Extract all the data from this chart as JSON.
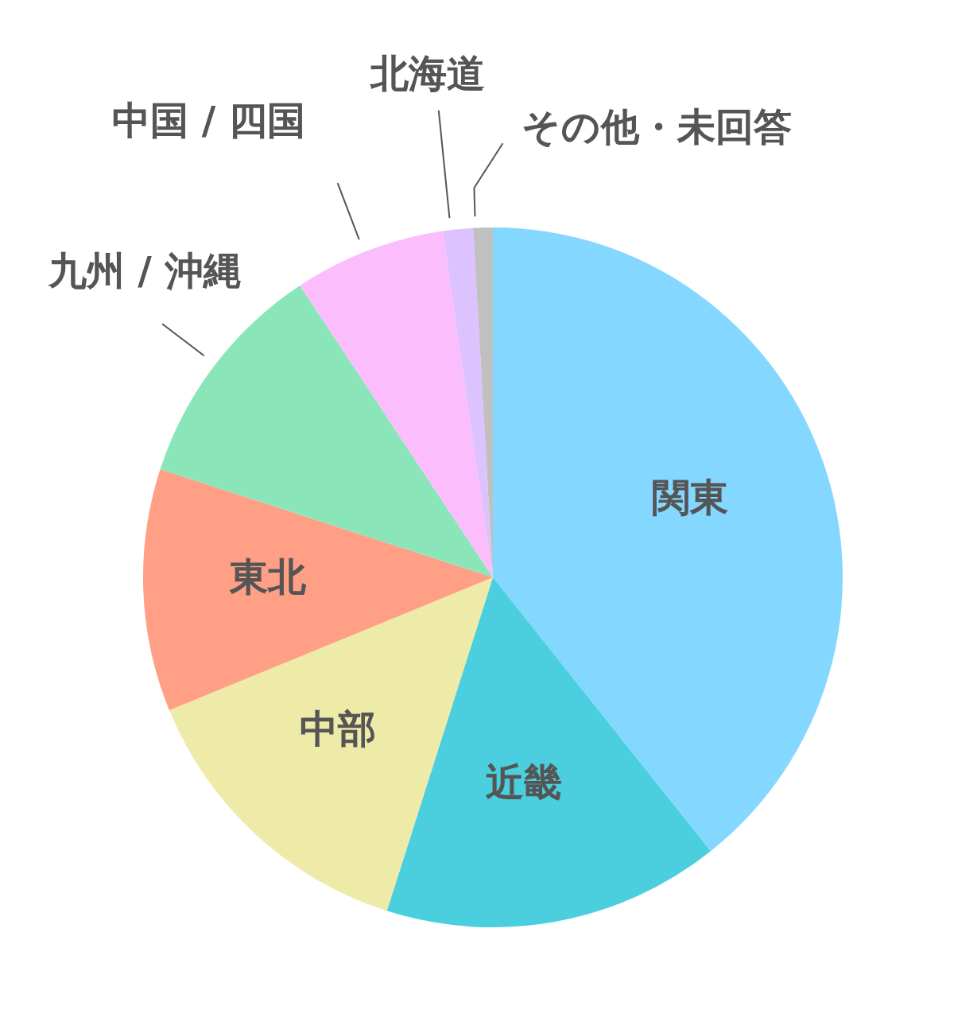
{
  "chart_data": {
    "type": "pie",
    "categories": [
      "関東",
      "近畿",
      "中部",
      "東北",
      "九州 / 沖縄",
      "中国 / 四国",
      "北海道",
      "その他・未回答"
    ],
    "values": [
      39.3,
      15.6,
      13.9,
      11.2,
      10.7,
      7.0,
      1.4,
      0.9
    ],
    "colors": [
      "#84d8ff",
      "#4bcfdf",
      "#eeeaa8",
      "#ff9f85",
      "#8ae6b8",
      "#fcbdfd",
      "#dcc2ff",
      "#c0c0c0"
    ]
  }
}
